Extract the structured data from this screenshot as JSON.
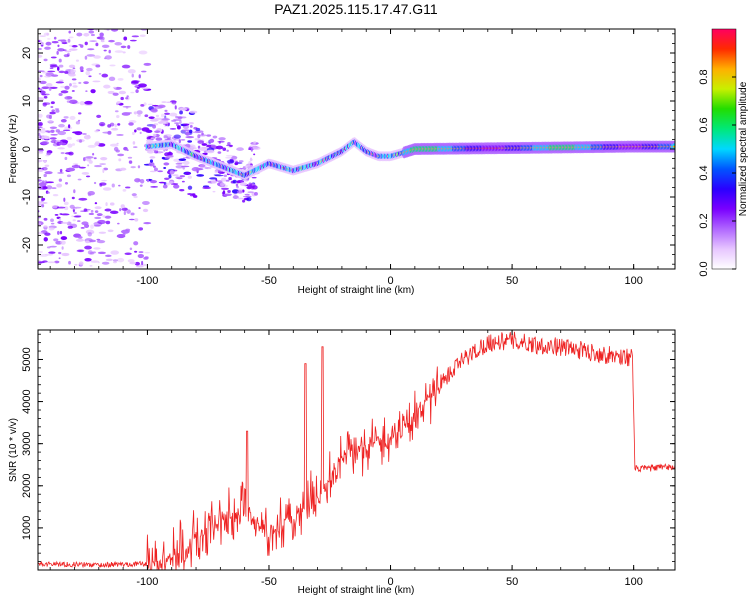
{
  "title": "PAZ1.2025.115.17.47.G11",
  "colors": {
    "snr_line": "#ee2222",
    "colormap": [
      "#ffffff",
      "#e7c6ff",
      "#b066ff",
      "#7a00ff",
      "#2a00ff",
      "#0055ff",
      "#00d8ff",
      "#00e87a",
      "#22dd00",
      "#c8f000",
      "#ffb000",
      "#ff2a00",
      "#ff0060"
    ]
  },
  "chart_data": [
    {
      "type": "heatmap",
      "xlabel": "Height of straight line (km)",
      "ylabel": "Frequency (Hz)",
      "xlim": [
        -145,
        117
      ],
      "ylim": [
        -25,
        25
      ],
      "xticks": [
        -100,
        -50,
        0,
        50,
        100
      ],
      "yticks": [
        -20,
        -10,
        0,
        10,
        20
      ],
      "colorbar": {
        "label": "Normalized spectral amplitude",
        "range": [
          0.0,
          1.0
        ],
        "ticks": [
          0.0,
          0.2,
          0.4,
          0.6,
          0.8
        ]
      },
      "ridge": {
        "description_points_x": [
          -100,
          -90,
          -80,
          -70,
          -60,
          -50,
          -40,
          -30,
          -20,
          -15,
          -10,
          -5,
          0,
          5,
          10,
          50,
          100,
          115
        ],
        "description_points_y": [
          0.5,
          1.0,
          -1.5,
          -3.5,
          -5.5,
          -3.0,
          -4.5,
          -3.0,
          -0.5,
          1.5,
          -0.5,
          -1.5,
          -1.5,
          -0.8,
          0.0,
          0.2,
          0.5,
          0.5
        ]
      }
    },
    {
      "type": "line",
      "xlabel": "Height of straight line (km)",
      "ylabel": "SNR (10 * v/v)",
      "xlim": [
        -145,
        117
      ],
      "ylim": [
        0,
        5700
      ],
      "xticks": [
        -100,
        -50,
        0,
        50,
        100
      ],
      "yticks": [
        1000,
        2000,
        3000,
        4000,
        5000
      ],
      "envelope_x": [
        -145,
        -120,
        -100,
        -90,
        -80,
        -70,
        -60,
        -50,
        -40,
        -30,
        -20,
        -10,
        0,
        10,
        20,
        30,
        40,
        50,
        60,
        70,
        80,
        90,
        99.5,
        100.5,
        117
      ],
      "envelope_y": [
        150,
        120,
        150,
        300,
        700,
        1100,
        1500,
        800,
        1200,
        1700,
        2700,
        3000,
        3100,
        3700,
        4400,
        5000,
        5400,
        5450,
        5350,
        5300,
        5200,
        5100,
        5050,
        2400,
        2450
      ],
      "spikes": [
        {
          "x": -59,
          "y": 3300
        },
        {
          "x": -35,
          "y": 4900
        },
        {
          "x": -28,
          "y": 5300
        }
      ]
    }
  ]
}
